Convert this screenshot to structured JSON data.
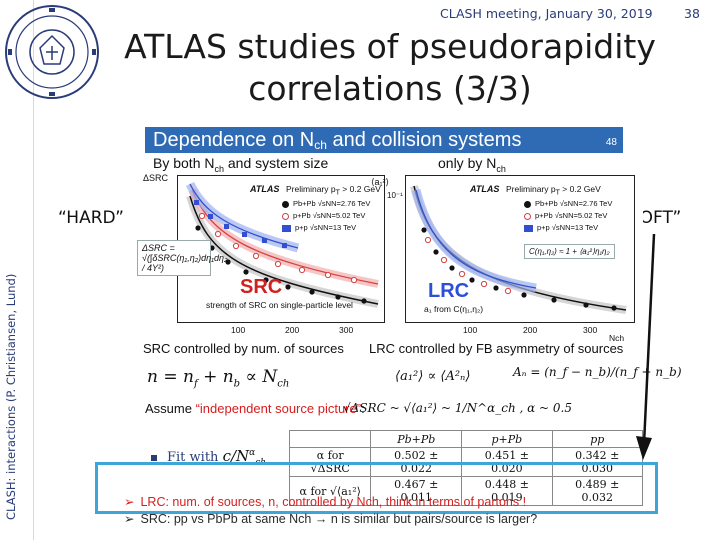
{
  "header": {
    "conference": "CLASH meeting, January 30, 2019",
    "page_number": "38",
    "title_line1": "ATLAS studies of pseudorapidity",
    "title_line2": "correlations (3/3)",
    "vertical_caption": "CLASH: interactions (P. Christiansen, Lund)"
  },
  "labels": {
    "hard": "“HARD”",
    "soft": "“SOFT”"
  },
  "slide": {
    "header_title_prefix": "Dependence on N",
    "header_sub": "ch",
    "header_title_suffix": " and collision systems",
    "header_page": "48",
    "left_subtitle": "By both N",
    "left_subtitle_sub": "ch",
    "left_subtitle_suffix": " and system size",
    "right_subtitle": "only by N",
    "right_subtitle_sub": "ch",
    "atlas": "ATLAS",
    "preliminary": "Preliminary  p",
    "preliminary_sub": "T",
    "preliminary_suffix": " > 0.2 GeV",
    "legend": [
      {
        "label": "Pb+Pb  √sNN=2.76 TeV",
        "color": "#111111"
      },
      {
        "label": "p+Pb  √sNN=5.02 TeV",
        "color": "#d64040"
      },
      {
        "label": "p+p  √sNN=13 TeV",
        "color": "#3050d0"
      }
    ],
    "src_label": "SRC",
    "lrc_label": "LRC",
    "left_axis_note": "strength of SRC on single-particle level",
    "right_axis_note": "a₁ from C",
    "right_axis_note_suffix": "(η₁,η₂)",
    "src_formula": "ΔSRC = √(∫δSRC(η₁,η₂)dη₁dη₂ / 4Y²)",
    "lrc_formula": "C(η₁,η₂) ≈ 1 + ⟨a₁²⟩η₁η₂",
    "left_ylabel": "ΔSRC",
    "right_ylabel": "⟨a₁²⟩",
    "right_ytick": "10⁻¹",
    "xticks": [
      "100",
      "200",
      "300"
    ],
    "xaxis_label": "Nch",
    "src_controlled": "SRC controlled by num. of sources",
    "lrc_controlled_prefix": "LRC controlled by FB asymmetry of sources",
    "formula_n": "n = n",
    "formula_n_rest": "+ n",
    "formula_n_tail": "∝ N",
    "formula_a": "⟨a₁²⟩ ∝ ⟨A²ₙ⟩",
    "formula_An": "Aₙ = (n_f − n_b)/(n_f + n_b)",
    "assume_prefix": "Assume ",
    "assume_red": "“independent source picture”",
    "assume_suffix": ":",
    "assume_formula": "√ΔSRC ~ √⟨a₁²⟩ ~ 1/N^α_ch , α ~ 0.5",
    "fit_label": "Fit with",
    "fit_formula": "c/N",
    "fit_formula_sup": "α",
    "fit_formula_sub": "ch",
    "table": {
      "headers": [
        "",
        "Pb+Pb",
        "p+Pb",
        "pp"
      ],
      "rows": [
        [
          "α for √ΔSRC",
          "0.502 ± 0.022",
          "0.451 ± 0.020",
          "0.342 ± 0.030"
        ],
        [
          "α for √⟨a₁²⟩",
          "0.467 ± 0.011",
          "0.448 ± 0.019",
          "0.489 ± 0.032"
        ]
      ]
    }
  },
  "bullets": {
    "line1": "LRC: num. of sources, n, controlled by Nch, think in terms of partons !",
    "line2": "SRC: pp vs PbPb at same Nch → n is similar but pairs/source is larger?"
  },
  "colors": {
    "accent_blue": "#2f6bb4",
    "highlight": "#3aa7d8",
    "red": "#d61e1e"
  }
}
